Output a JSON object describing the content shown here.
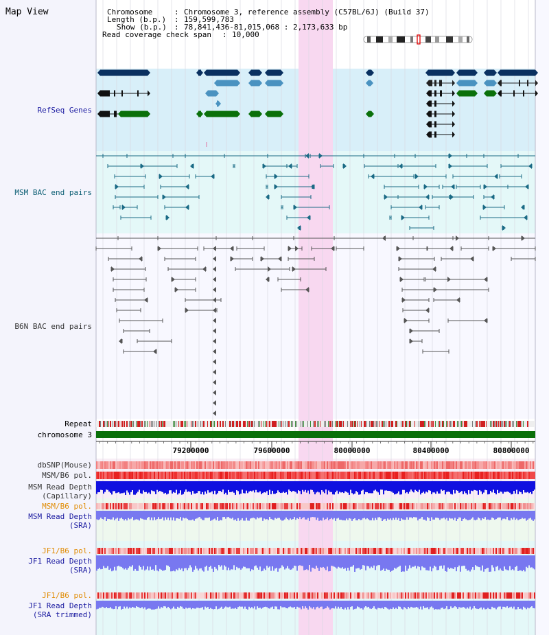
{
  "title": "Map View",
  "info": {
    "chromosome_key": "Chromosome",
    "chromosome_val": "Chromosome 3, reference assembly (C57BL/6J) (Build 37)",
    "length_key": "Length (b.p.)",
    "length_val": "159,599,783",
    "show_key": "Show (b.p.)",
    "show_val": "78,841,436-81,015,068 : 2,173,633 bp",
    "span_key": "Read coverage check span",
    "span_val": "10,000"
  },
  "tracks": {
    "refseq": "RefSeq Genes",
    "msm_bac": "MSM BAC end pairs",
    "b6n_bac": "B6N BAC end pairs",
    "repeat": "Repeat",
    "chromosome": "chromosome 3",
    "dbsnp": "dbSNP(Mouse)",
    "msm_b6_pol": "MSM/B6 pol.",
    "msm_read_depth_cap_1": "MSM Read Depth",
    "msm_read_depth_cap_2": "(Capillary)",
    "msm_b6_pol_2": "MSM/B6 pol.",
    "msm_read_depth_sra_1": "MSM Read Depth",
    "msm_read_depth_sra_2": "(SRA)",
    "jf1_b6_pol": "JF1/B6 pol.",
    "jf1_read_depth_sra_1": "JF1 Read Depth",
    "jf1_read_depth_sra_2": "(SRA)",
    "jf1_b6_pol_2": "JF1/B6 pol.",
    "jf1_read_depth_trim_1": "JF1 Read Depth",
    "jf1_read_depth_trim_2": "(SRA trimmed)"
  },
  "axis": {
    "ticks": [
      "79200000",
      "79600000",
      "80000000",
      "80400000",
      "80800000"
    ]
  },
  "colors": {
    "refseq_dark": "#0a3060",
    "refseq_mid": "#4a92c0",
    "refseq_green": "#0a700a",
    "msm_bac": "#1a6a85",
    "b6n_bac": "#555555",
    "highlight": "#f8d8f0",
    "chromosome_bar": "#0a700a",
    "depth_blue": "#1010e0",
    "depth_light": "#7878f0"
  }
}
